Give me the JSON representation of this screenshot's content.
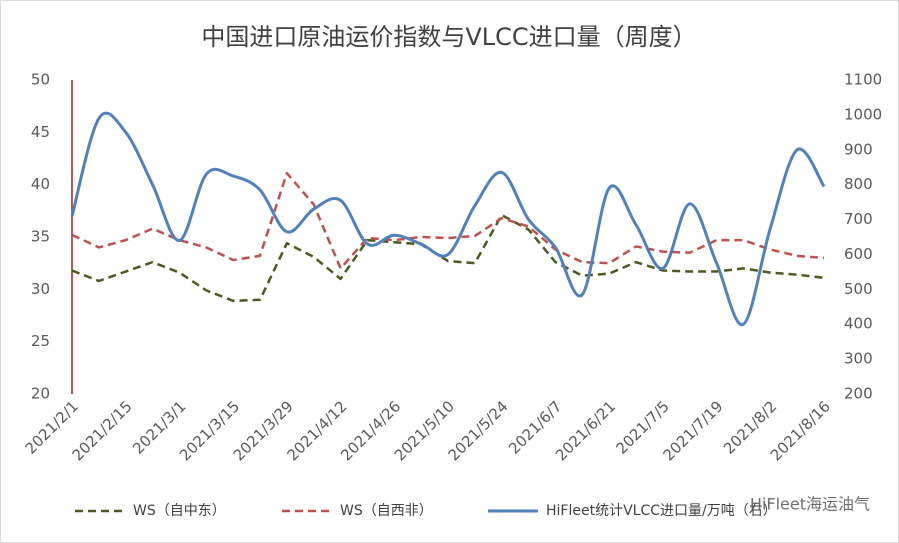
{
  "chart_data": {
    "type": "line",
    "title": "中国进口原油运价指数与VLCC进口量（周度）",
    "categories": [
      "2021/2/1",
      null,
      "2021/2/15",
      null,
      "2021/3/1",
      null,
      "2021/3/15",
      null,
      "2021/3/29",
      null,
      "2021/4/12",
      null,
      "2021/4/26",
      null,
      "2021/5/10",
      null,
      "2021/5/24",
      null,
      "2021/6/7",
      null,
      "2021/6/21",
      null,
      "2021/7/5",
      null,
      "2021/7/19",
      null,
      "2021/8/2",
      null,
      "2021/8/16"
    ],
    "ylim": [
      20,
      50
    ],
    "yticks": [
      20,
      25,
      30,
      35,
      40,
      45,
      50
    ],
    "y2lim": [
      200,
      1100
    ],
    "y2ticks": [
      200,
      300,
      400,
      500,
      600,
      700,
      800,
      900,
      1000,
      1100
    ],
    "legend": "bottom",
    "watermark": "HiFleet海运油气",
    "series": [
      {
        "name": "WS（自中东）",
        "color": "#4a5a1e",
        "dash": true,
        "values": [
          31.8,
          30.8,
          31.7,
          32.6,
          31.6,
          29.9,
          28.9,
          29.0,
          34.4,
          33.1,
          31.0,
          34.7,
          34.5,
          34.3,
          32.7,
          32.5,
          37.1,
          35.7,
          32.6,
          31.3,
          31.5,
          32.6,
          31.8,
          31.7,
          31.7,
          32.0,
          31.6,
          31.4,
          31.1
        ]
      },
      {
        "name": "WS（自西非）",
        "color": "#c0504d",
        "dash": true,
        "values": [
          35.2,
          34.0,
          34.7,
          35.8,
          34.7,
          34.0,
          32.8,
          33.2,
          41.1,
          38.1,
          32.0,
          34.9,
          34.7,
          35.0,
          34.9,
          35.1,
          36.8,
          36.0,
          33.8,
          32.6,
          32.5,
          34.1,
          33.6,
          33.5,
          34.7,
          34.7,
          33.8,
          33.2,
          33.0
        ]
      },
      {
        "name": "HiFleet统计VLCC进口量/万吨（右）",
        "color": "#4f81bd",
        "dash": false,
        "axis": "y2",
        "smooth": true,
        "values": [
          710,
          990,
          950,
          800,
          640,
          830,
          825,
          785,
          665,
          730,
          755,
          630,
          655,
          630,
          600,
          740,
          835,
          700,
          620,
          485,
          790,
          685,
          560,
          745,
          575,
          400,
          675,
          900,
          795
        ]
      }
    ]
  }
}
